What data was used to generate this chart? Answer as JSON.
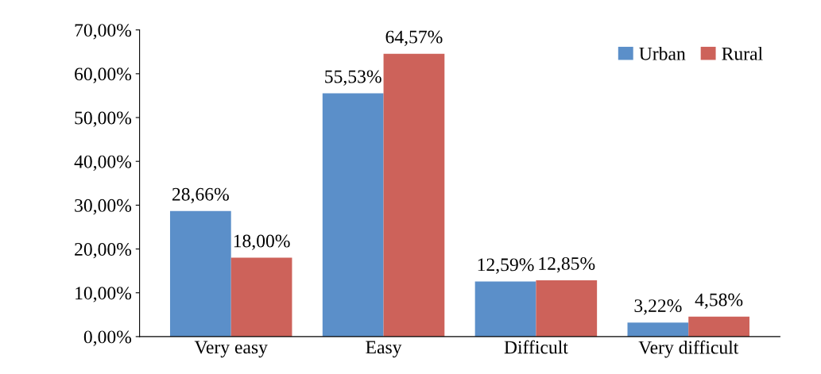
{
  "chart_data": {
    "type": "bar",
    "categories": [
      "Very easy",
      "Easy",
      "Difficult",
      "Very difficult"
    ],
    "series": [
      {
        "name": "Urban",
        "color": "#5b8fc9",
        "values": [
          28.66,
          55.53,
          12.59,
          3.22
        ],
        "value_labels": [
          "28,66%",
          "55,53%",
          "12,59%",
          "3,22%"
        ]
      },
      {
        "name": "Rural",
        "color": "#cd625a",
        "values": [
          18.0,
          64.57,
          12.85,
          4.58
        ],
        "value_labels": [
          "18,00%",
          "64,57%",
          "12,85%",
          "4,58%"
        ]
      }
    ],
    "ylim": [
      0,
      70
    ],
    "yticks": [
      {
        "value": 0,
        "label": "0,00%"
      },
      {
        "value": 10,
        "label": "10,00%"
      },
      {
        "value": 20,
        "label": "20,00%"
      },
      {
        "value": 30,
        "label": "30,00%"
      },
      {
        "value": 40,
        "label": "40,00%"
      },
      {
        "value": 50,
        "label": "50,00%"
      },
      {
        "value": 60,
        "label": "60,00%"
      },
      {
        "value": 70,
        "label": "70,00%"
      }
    ],
    "grid": false,
    "legend": "top right"
  }
}
